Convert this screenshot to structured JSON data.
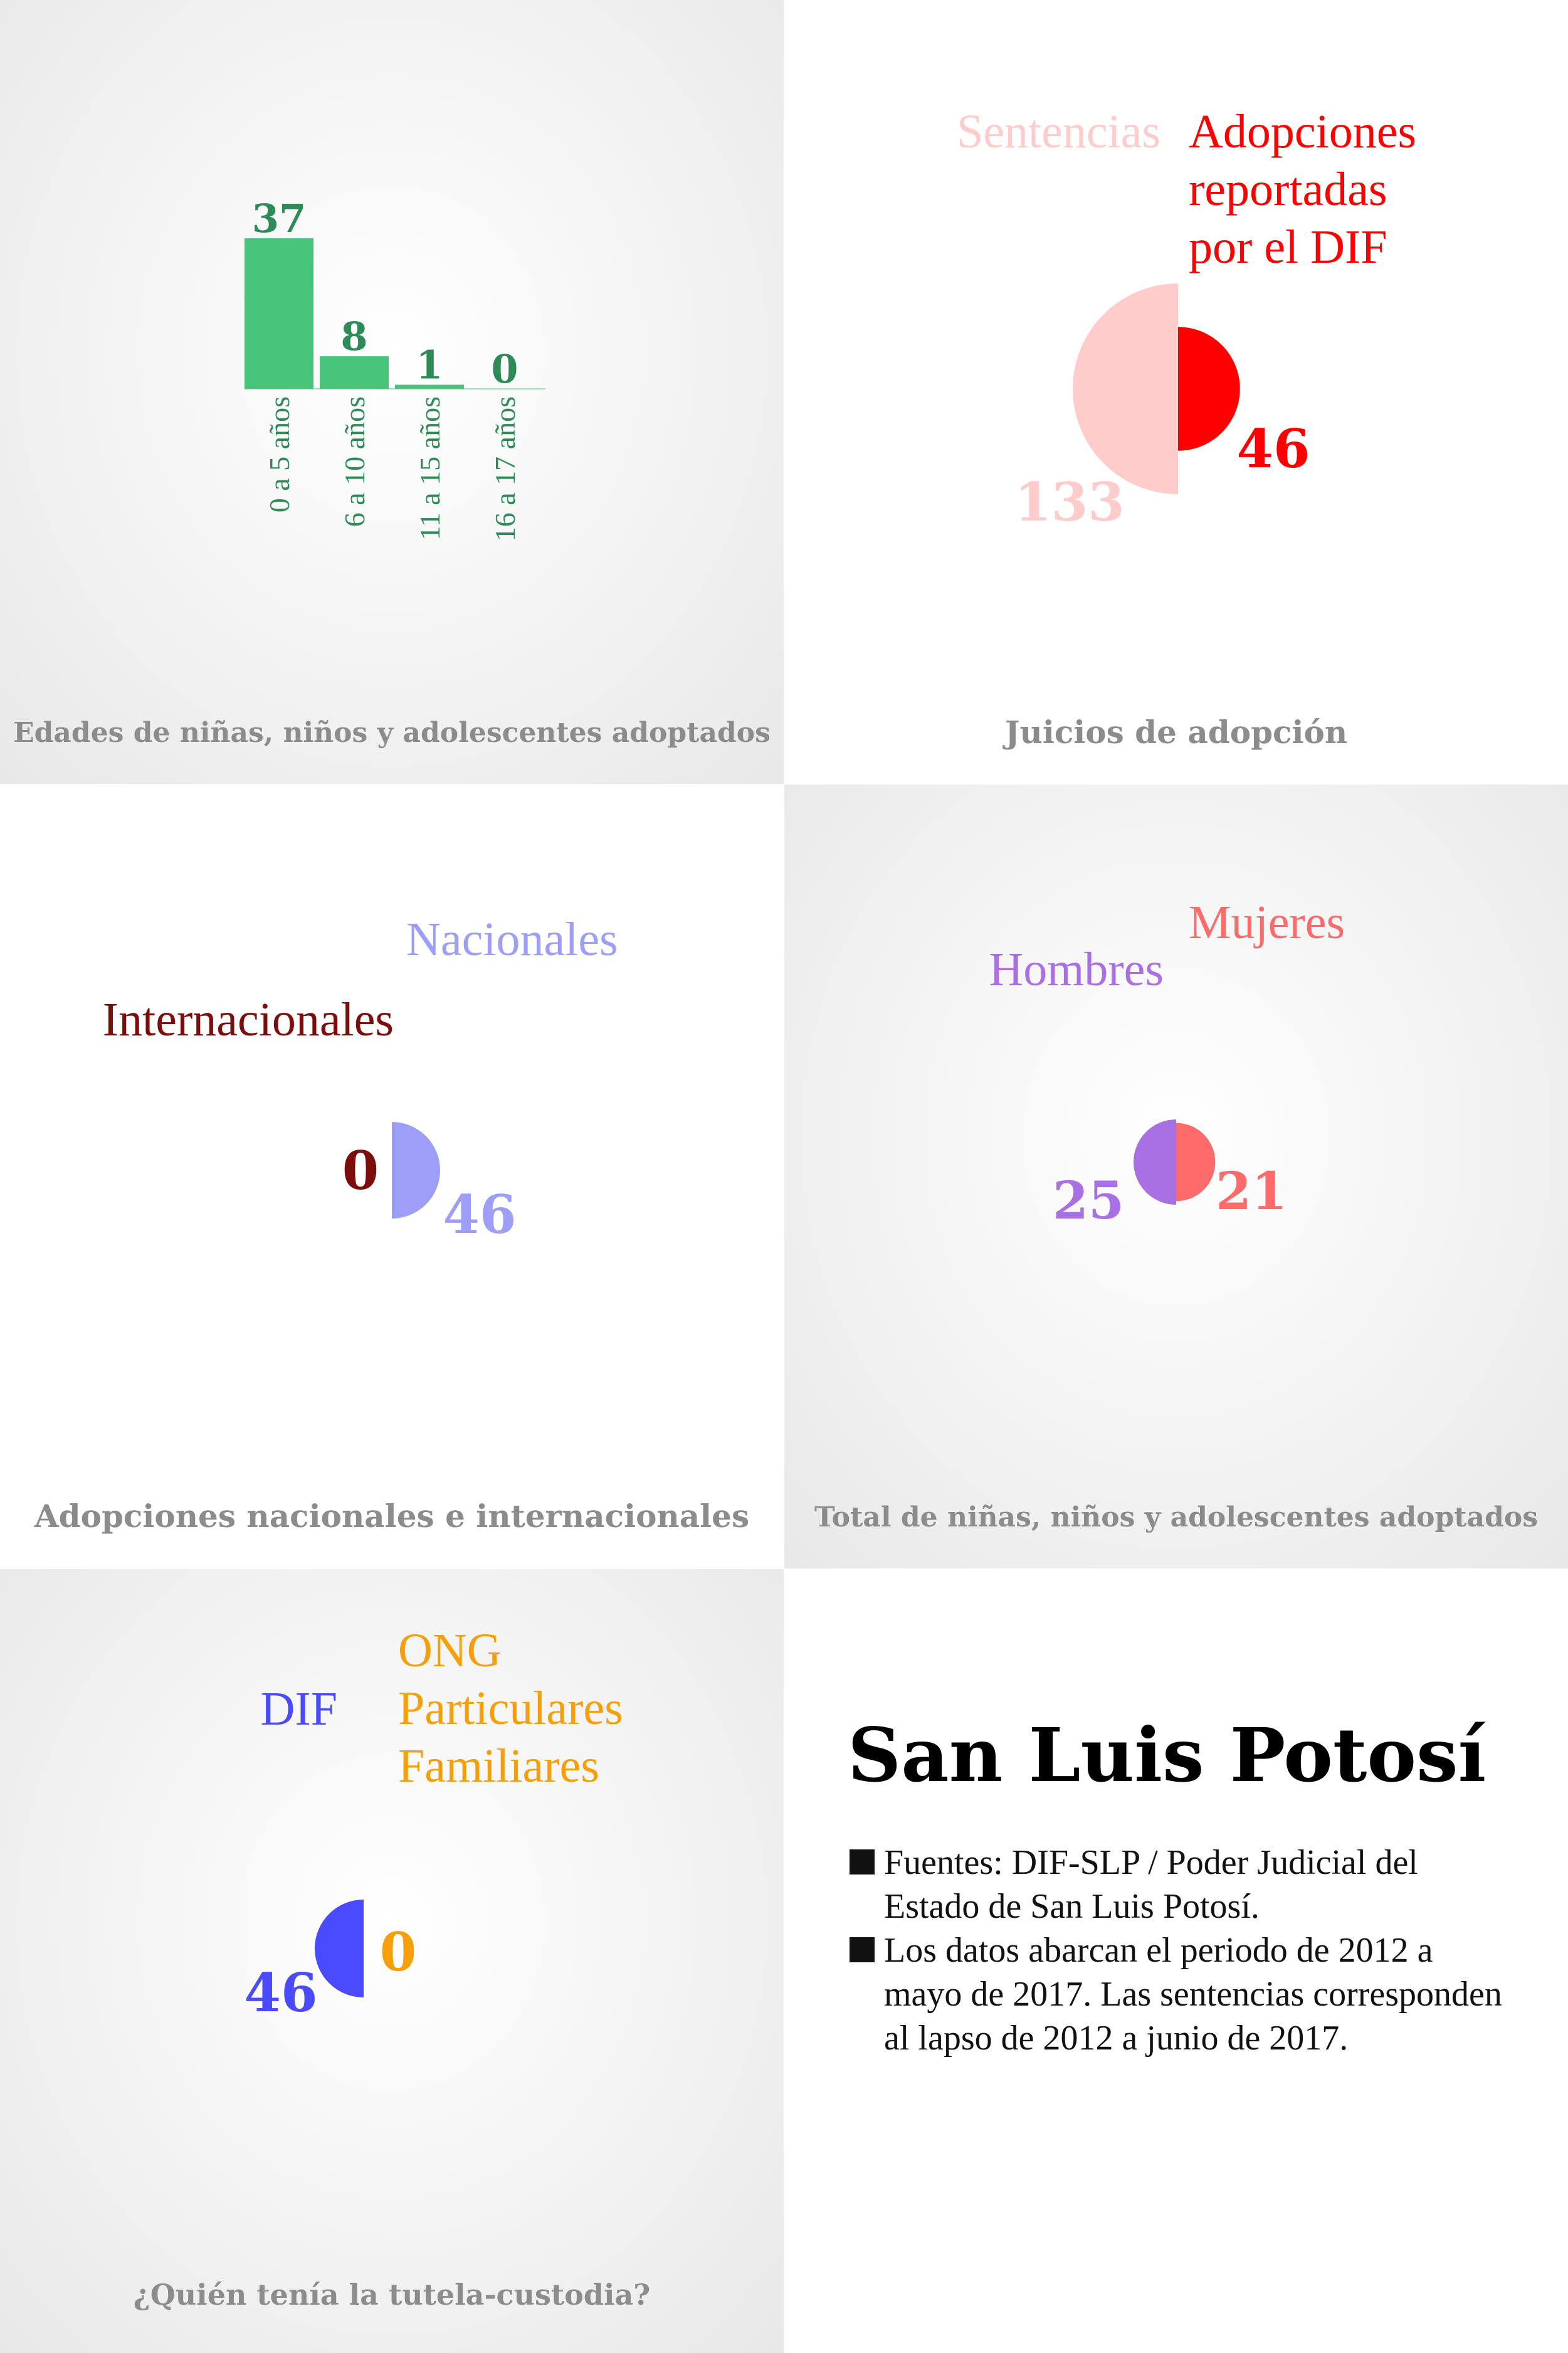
{
  "panels": {
    "ages": {
      "caption": "Edades de niñas, niños y adolescentes adoptados",
      "chart_data": {
        "type": "bar",
        "categories": [
          "0 a 5 años",
          "6 a 10 años",
          "11 a 15 años",
          "16 a 17 años"
        ],
        "values": [
          37,
          8,
          1,
          0
        ],
        "value_labels": [
          "37",
          "8",
          "1",
          "0"
        ],
        "color": "#47c47a",
        "label_color": "#2e8b57"
      }
    },
    "juicios": {
      "caption": "Juicios de adopción",
      "labels": {
        "left": "Sentencias",
        "right": "Adopciones\nreportadas\npor el DIF"
      },
      "chart_data": {
        "type": "pie",
        "series": [
          {
            "name": "Sentencias",
            "value": 133,
            "label": "133",
            "color": "#ffcccc"
          },
          {
            "name": "Adopciones reportadas por el DIF",
            "value": 46,
            "label": "46",
            "color": "#ff0000"
          }
        ]
      }
    },
    "nacionales": {
      "caption": "Adopciones nacionales e internacionales",
      "labels": {
        "left": "Internacionales",
        "right": "Nacionales"
      },
      "chart_data": {
        "type": "pie",
        "series": [
          {
            "name": "Internacionales",
            "value": 0,
            "label": "0",
            "color": "#7b0d0d"
          },
          {
            "name": "Nacionales",
            "value": 46,
            "label": "46",
            "color": "#9d9ef7"
          }
        ]
      }
    },
    "genero": {
      "caption": "Total de niñas, niños y adolescentes adoptados",
      "labels": {
        "left": "Hombres",
        "right": "Mujeres"
      },
      "chart_data": {
        "type": "pie",
        "series": [
          {
            "name": "Hombres",
            "value": 25,
            "label": "25",
            "color": "#a970e3"
          },
          {
            "name": "Mujeres",
            "value": 21,
            "label": "21",
            "color": "#ff6b6b"
          }
        ]
      }
    },
    "tutela": {
      "caption": "¿Quién tenía la tutela-custodia?",
      "labels": {
        "left": "DIF",
        "right": "ONG\nParticulares\nFamiliares"
      },
      "chart_data": {
        "type": "pie",
        "series": [
          {
            "name": "DIF",
            "value": 46,
            "label": "46",
            "color": "#4a4aff"
          },
          {
            "name": "ONG Particulares Familiares",
            "value": 0,
            "label": "0",
            "color": "#f5a00a"
          }
        ]
      }
    }
  },
  "info": {
    "title": "San Luis Potosí",
    "notes": [
      "Fuentes: DIF-SLP / Poder Judicial del Estado de San Luis Potosí.",
      "Los datos abarcan el periodo de 2012 a mayo de 2017. Las sentencias corresponden al lapso de 2012 a junio de 2017."
    ]
  }
}
